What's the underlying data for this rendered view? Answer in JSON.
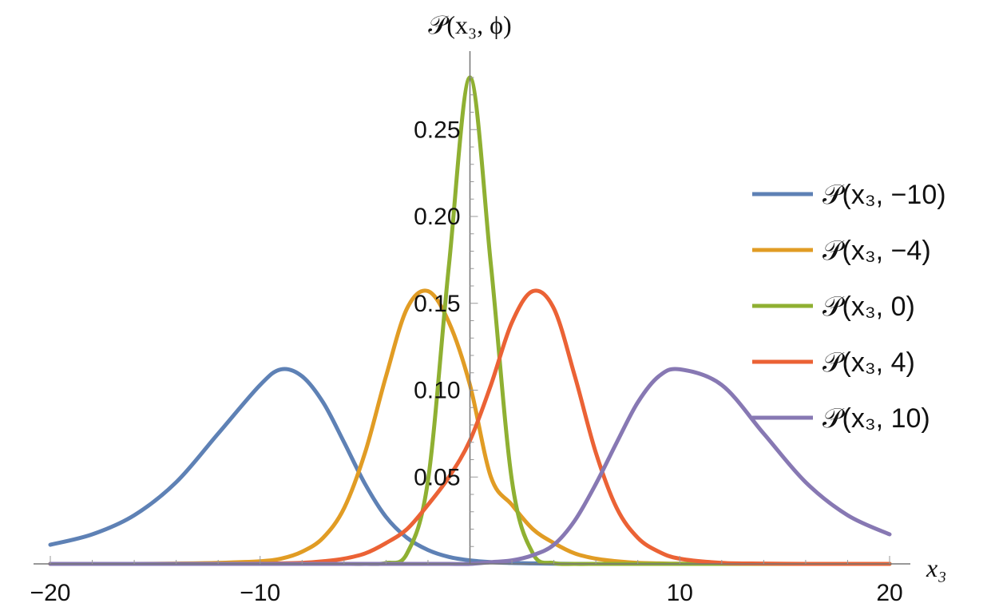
{
  "chart_data": {
    "type": "line",
    "xlabel": "x₃",
    "ylabel": "𝒫(x₃, ϕ)",
    "xlim": [
      -20,
      20
    ],
    "ylim": [
      0,
      0.285
    ],
    "xticks": [
      -20,
      -10,
      10,
      20
    ],
    "xtick_labels": [
      "−20",
      "−10",
      "10",
      "20"
    ],
    "yticks": [
      0.05,
      0.1,
      0.15,
      0.2,
      0.25
    ],
    "ytick_labels": [
      "0.05",
      "0.10",
      "0.15",
      "0.20",
      "0.25"
    ],
    "grid": false,
    "legend_position": "right",
    "x": [
      -20,
      -18,
      -16,
      -14,
      -12,
      -10,
      -9,
      -8,
      -7,
      -6,
      -5,
      -4,
      -3,
      -2,
      -1,
      0,
      1,
      2,
      3,
      4,
      5,
      6,
      7,
      8,
      9,
      10,
      12,
      14,
      16,
      18,
      20
    ],
    "series": [
      {
        "name": "𝒫(x₃, −10)",
        "color": "#5E81B5",
        "values": [
          0.011,
          0.017,
          0.028,
          0.047,
          0.075,
          0.103,
          0.112,
          0.108,
          0.093,
          0.07,
          0.046,
          0.027,
          0.015,
          0.008,
          0.004,
          0.002,
          0.001,
          0.0005,
          0.0003,
          0.0001,
          0,
          0,
          0,
          0,
          0,
          0,
          0,
          0,
          0,
          0,
          0
        ]
      },
      {
        "name": "𝒫(x₃, −4)",
        "color": "#E19C24",
        "values": [
          0,
          0,
          0,
          0.0002,
          0.0006,
          0.0015,
          0.003,
          0.007,
          0.015,
          0.032,
          0.064,
          0.108,
          0.147,
          0.157,
          0.139,
          0.103,
          0.05,
          0.034,
          0.02,
          0.012,
          0.006,
          0.003,
          0.0015,
          0.0006,
          0.0003,
          0.0001,
          0,
          0,
          0,
          0,
          0
        ]
      },
      {
        "name": "𝒫(x₃, 0)",
        "color": "#8FB032",
        "values": [
          0,
          0,
          0,
          0,
          0,
          0,
          0,
          0,
          0,
          0,
          0,
          0.0005,
          0.006,
          0.048,
          0.172,
          0.28,
          0.172,
          0.048,
          0.006,
          0.0005,
          0,
          0,
          0,
          0,
          0,
          0,
          0,
          0,
          0,
          0,
          0
        ]
      },
      {
        "name": "𝒫(x₃, 4)",
        "color": "#EB6235",
        "values": [
          0,
          0,
          0,
          0,
          0,
          0.0001,
          0.0003,
          0.0006,
          0.0015,
          0.003,
          0.006,
          0.012,
          0.02,
          0.034,
          0.05,
          0.071,
          0.103,
          0.139,
          0.157,
          0.147,
          0.108,
          0.064,
          0.032,
          0.015,
          0.007,
          0.003,
          0.0006,
          0.0002,
          0,
          0,
          0
        ]
      },
      {
        "name": "𝒫(x₃, 10)",
        "color": "#8778B3",
        "values": [
          0,
          0,
          0,
          0,
          0,
          0,
          0,
          0,
          0,
          0,
          0,
          0,
          0,
          0,
          0,
          0,
          0.001,
          0.002,
          0.005,
          0.011,
          0.025,
          0.046,
          0.07,
          0.093,
          0.108,
          0.112,
          0.103,
          0.075,
          0.047,
          0.028,
          0.017
        ]
      }
    ]
  }
}
